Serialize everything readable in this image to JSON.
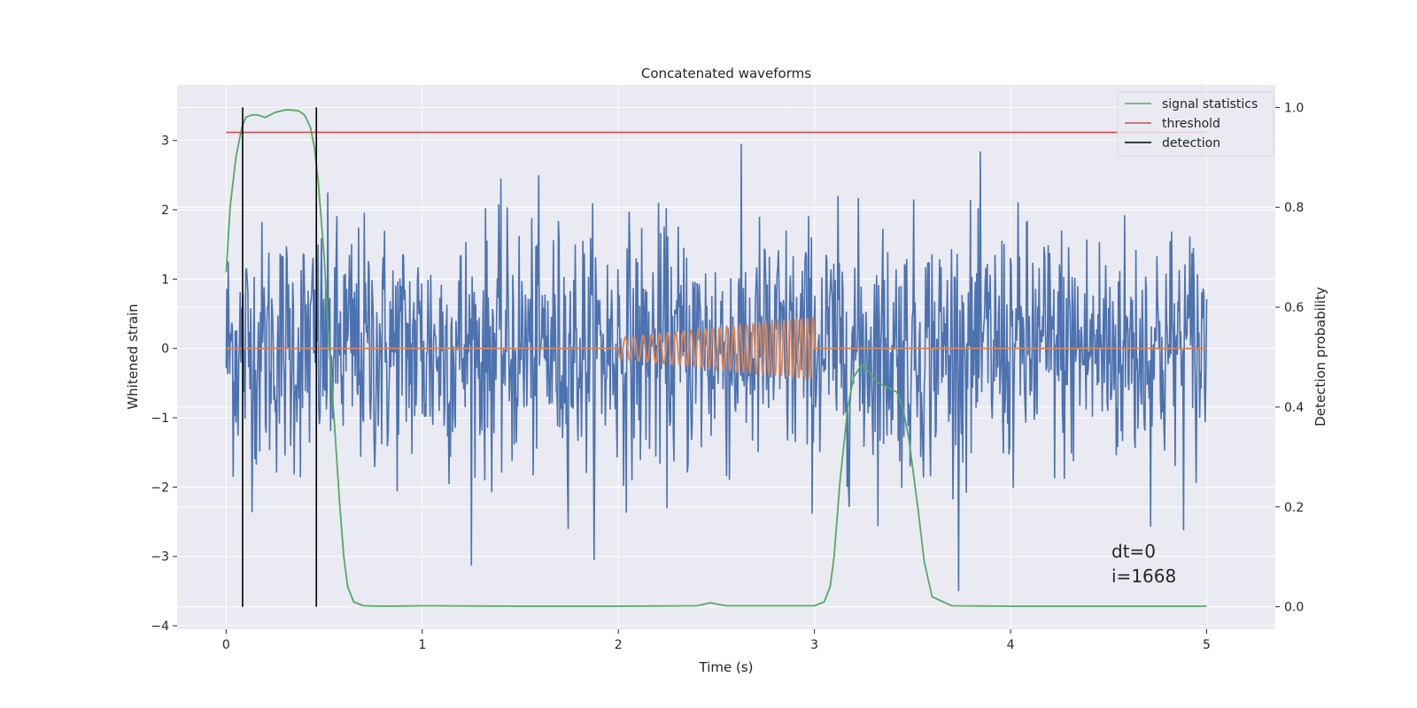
{
  "chart_data": {
    "type": "line",
    "title": "Concatenated waveforms",
    "xlabel": "Time (s)",
    "ylabel": "Whitened strain",
    "y2label": "Detection probability",
    "xlim": [
      -0.25,
      5.35
    ],
    "ylim": [
      -4.05,
      3.8
    ],
    "y2lim": [
      -0.045,
      1.045
    ],
    "x_ticks": [
      0,
      1,
      2,
      3,
      4,
      5
    ],
    "x_tick_labels": [
      "0",
      "1",
      "2",
      "3",
      "4",
      "5"
    ],
    "y_ticks": [
      -4,
      -3,
      -2,
      -1,
      0,
      1,
      2,
      3
    ],
    "y_tick_labels": [
      "−4",
      "−3",
      "−2",
      "−1",
      "0",
      "1",
      "2",
      "3"
    ],
    "y2_ticks": [
      0.0,
      0.2,
      0.4,
      0.6,
      0.8,
      1.0
    ],
    "y2_tick_labels": [
      "0.0",
      "0.2",
      "0.4",
      "0.6",
      "0.8",
      "1.0"
    ],
    "grid": true,
    "legend_position": "top-right",
    "annotations": [
      "dt=0",
      "i=1668"
    ],
    "noise": {
      "color": "#4c72b0",
      "x_range": [
        0,
        5
      ],
      "amplitude_typical": 1.5,
      "amplitude_max": 3.5
    },
    "injected_signal": {
      "color": "#dd8452",
      "x_start": 2.0,
      "x_end": 3.0,
      "amplitude_start": 0.15,
      "amplitude_end": 0.45,
      "cycles": 28
    },
    "series": [
      {
        "name": "signal statistics",
        "color": "#55a868",
        "axis": "right",
        "x": [
          0.0,
          0.02,
          0.05,
          0.08,
          0.1,
          0.13,
          0.16,
          0.2,
          0.25,
          0.3,
          0.33,
          0.37,
          0.4,
          0.43,
          0.45,
          0.47,
          0.5,
          0.52,
          0.55,
          0.58,
          0.6,
          0.62,
          0.65,
          0.7,
          0.8,
          1.0,
          1.5,
          2.0,
          2.4,
          2.47,
          2.55,
          3.0,
          3.05,
          3.08,
          3.1,
          3.13,
          3.17,
          3.2,
          3.24,
          3.28,
          3.32,
          3.37,
          3.42,
          3.45,
          3.48,
          3.5,
          3.53,
          3.56,
          3.6,
          3.7,
          4.0,
          4.5,
          5.0
        ],
        "y": [
          0.67,
          0.8,
          0.9,
          0.96,
          0.98,
          0.985,
          0.985,
          0.98,
          0.99,
          0.995,
          0.995,
          0.993,
          0.985,
          0.96,
          0.92,
          0.85,
          0.7,
          0.55,
          0.38,
          0.2,
          0.1,
          0.04,
          0.01,
          0.002,
          0.001,
          0.002,
          0.001,
          0.001,
          0.002,
          0.008,
          0.002,
          0.002,
          0.01,
          0.04,
          0.1,
          0.25,
          0.4,
          0.46,
          0.485,
          0.47,
          0.45,
          0.44,
          0.43,
          0.4,
          0.34,
          0.28,
          0.19,
          0.09,
          0.02,
          0.002,
          0.001,
          0.001,
          0.001
        ]
      },
      {
        "name": "threshold",
        "color": "#c44e52",
        "axis": "right",
        "x": [
          0,
          5
        ],
        "y": [
          0.95,
          0.95
        ]
      },
      {
        "name": "detection",
        "color": "#000000",
        "axis": "right",
        "x": [
          0.084,
          0.46
        ],
        "y": [
          0.0,
          1.0
        ]
      }
    ]
  }
}
